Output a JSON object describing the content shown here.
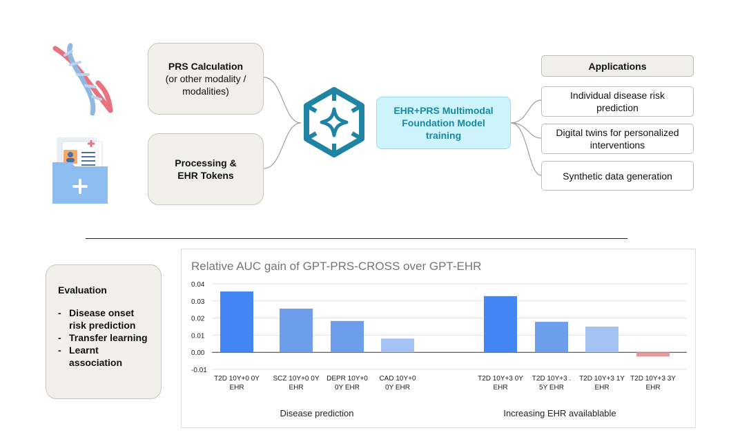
{
  "prs_box": {
    "title": "PRS Calculation",
    "subtitle": "(or other modality / modalities)"
  },
  "ehr_box": {
    "title": "Processing & EHR Tokens"
  },
  "model_box": {
    "label": "EHR+PRS Multimodal Foundation Model training"
  },
  "applications": {
    "header": "Applications",
    "items": [
      "Individual disease risk prediction",
      "Digital twins for personalized interventions",
      "Synthetic data generation"
    ]
  },
  "evaluation": {
    "title": "Evaluation",
    "items": [
      "Disease onset risk prediction",
      "Transfer learning",
      "Learnt association"
    ],
    "dash": "-"
  },
  "colors": {
    "box_fill": "#f1efea",
    "model_fill": "#cdf3fb",
    "model_text": "#1a87a6",
    "icon_teal": "#1f84a3",
    "bar_dark": "#4285f4",
    "bar_mid": "#6d9eeb",
    "bar_light": "#a4c2f4",
    "bar_neg": "#e79a9a"
  },
  "icons": [
    "dna-icon",
    "medical-folder-icon",
    "foundation-model-cube-icon"
  ],
  "chart_data": {
    "type": "bar",
    "title": "Relative AUC gain of GPT-PRS-CROSS over GPT-EHR",
    "ylim": [
      -0.01,
      0.04
    ],
    "yticks": [
      "0.04",
      "0.03",
      "0.02",
      "0.01",
      "0.00",
      "-0.01"
    ],
    "ytick_values": [
      0.04,
      0.03,
      0.02,
      0.01,
      0.0,
      -0.01
    ],
    "categories": [
      [
        "T2D 10Y+0 0Y",
        "EHR"
      ],
      [
        "SCZ 10Y+0 0Y",
        "EHR"
      ],
      [
        "DEPR 10Y+0",
        "0Y EHR"
      ],
      [
        "CAD 10Y+0",
        "0Y EHR"
      ],
      [
        "T2D 10Y+3 0Y",
        "EHR"
      ],
      [
        "T2D 10Y+3 .",
        "5Y EHR"
      ],
      [
        "T2D 10Y+3 1Y",
        "EHR"
      ],
      [
        "T2D 10Y+3 3Y",
        "EHR"
      ]
    ],
    "values": [
      0.0355,
      0.0255,
      0.0183,
      0.008,
      0.0328,
      0.0178,
      0.015,
      -0.0025
    ],
    "bar_colors": [
      "#4285f4",
      "#6d9eeb",
      "#6d9eeb",
      "#a4c2f4",
      "#4285f4",
      "#6d9eeb",
      "#a4c2f4",
      "#e79a9a"
    ],
    "groups": [
      "Disease prediction",
      "Increasing EHR availablable"
    ],
    "grid": true
  }
}
